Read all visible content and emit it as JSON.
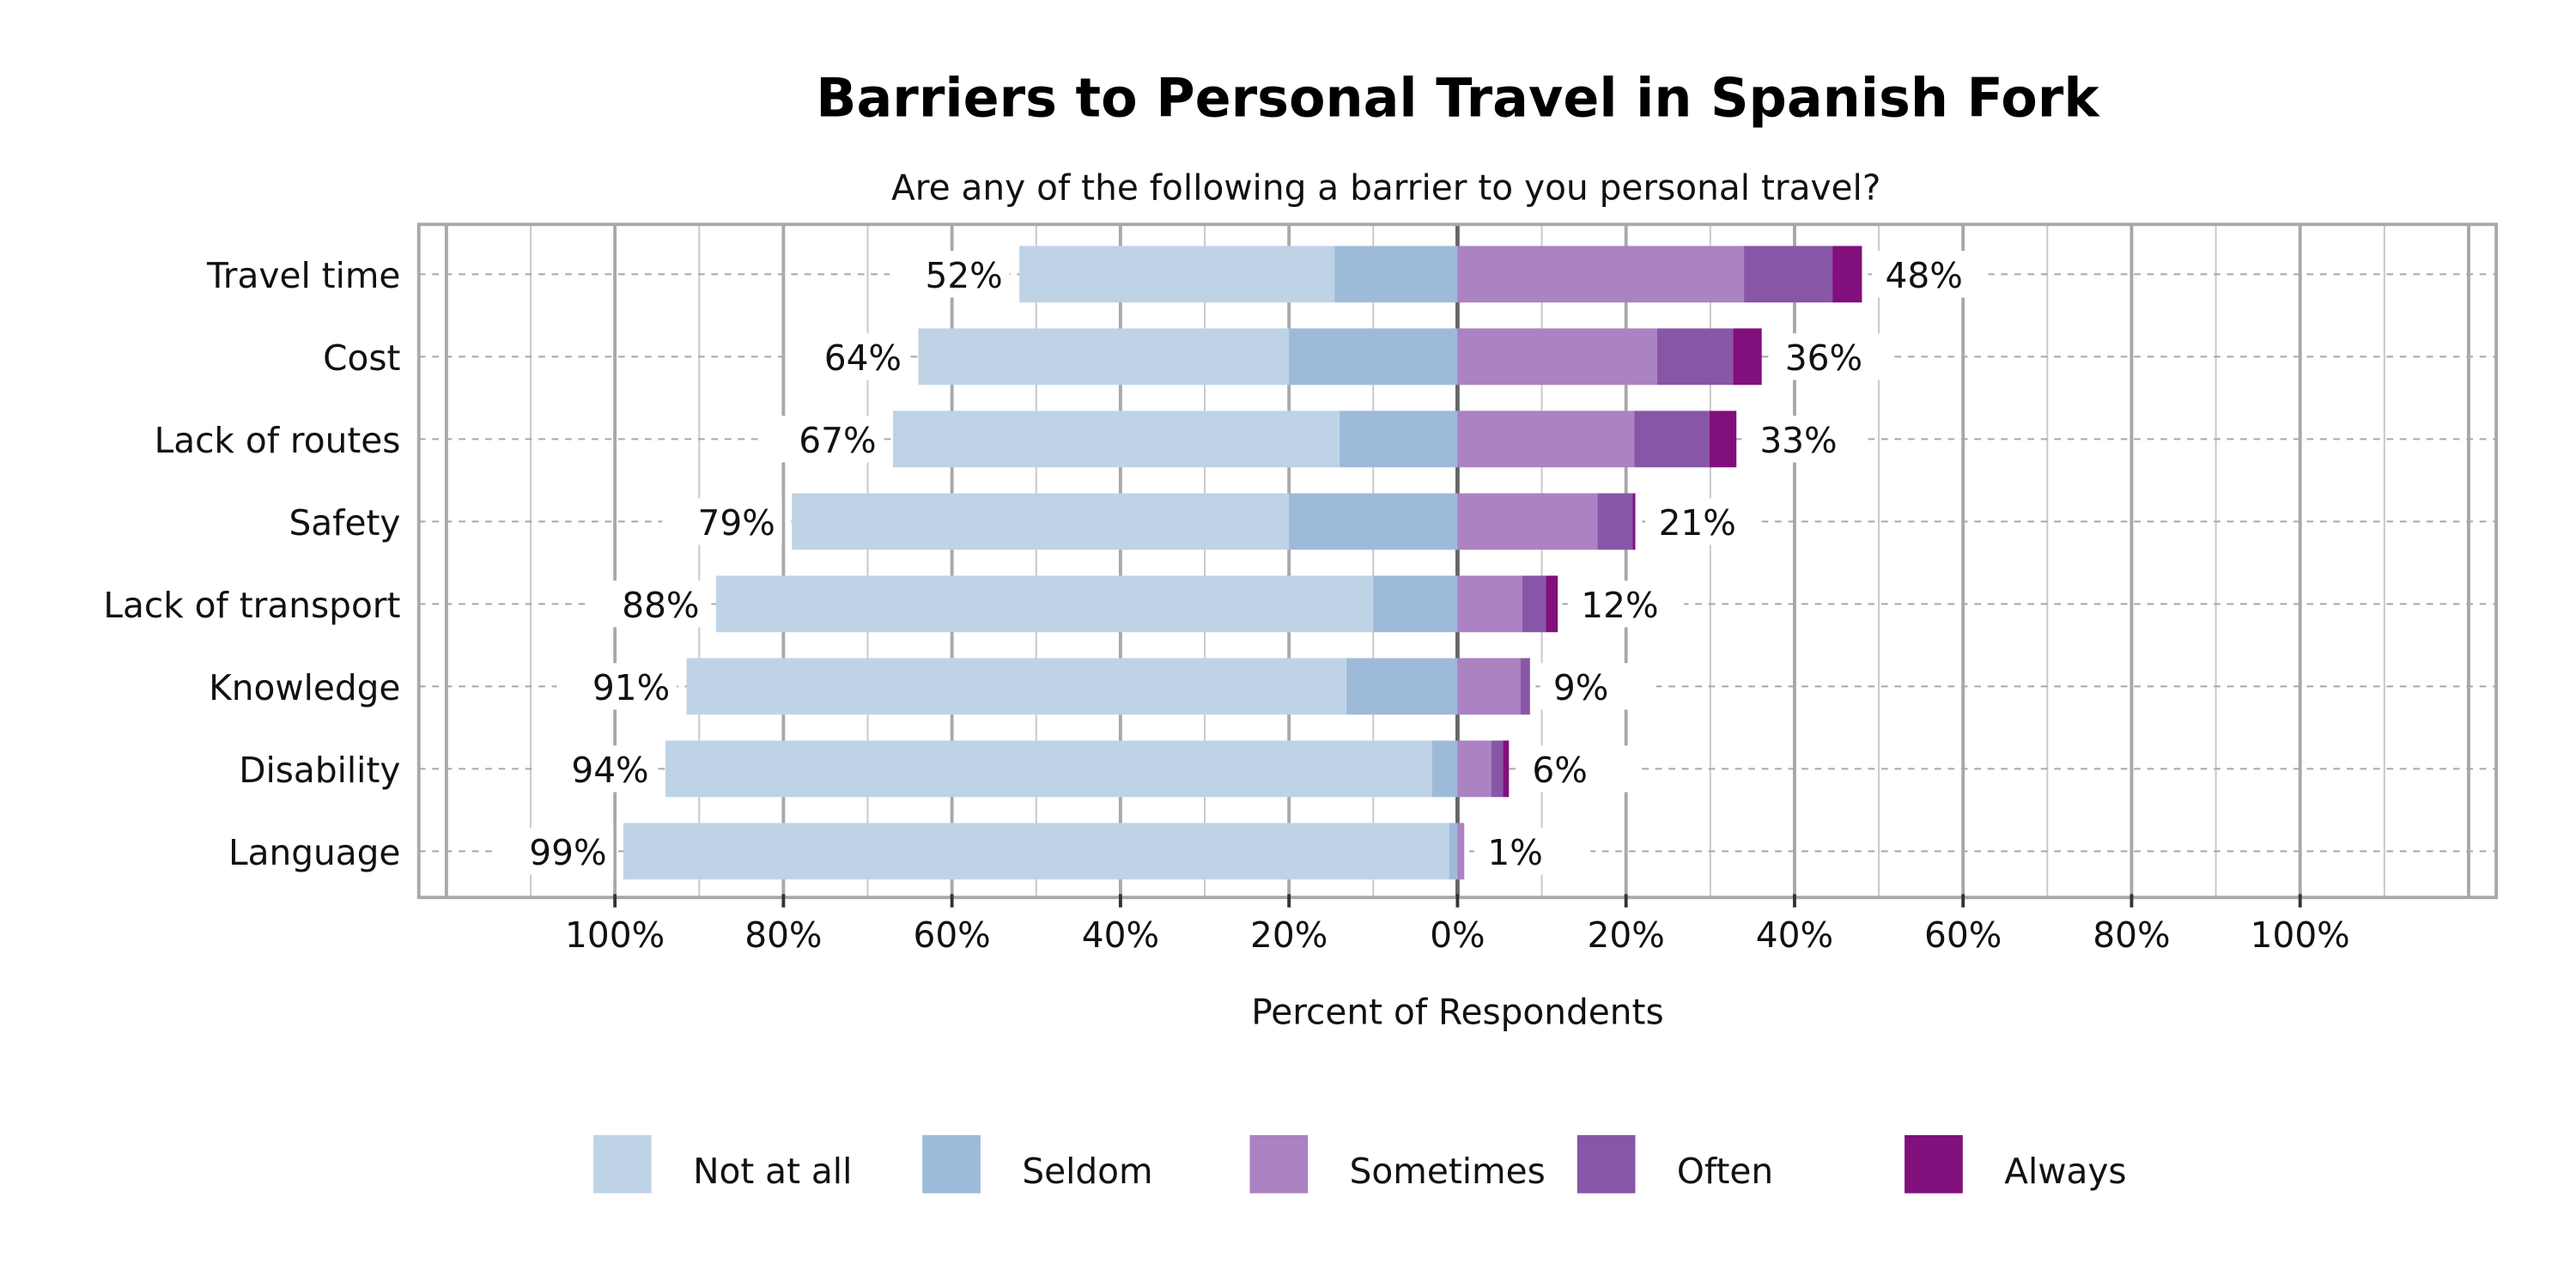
{
  "chart_data": {
    "type": "bar",
    "orientation": "horizontal-diverging-stacked",
    "title": "Barriers to Personal Travel in Spanish Fork",
    "subtitle": "Are any of the following a barrier to you personal travel?",
    "xlabel": "Percent of Respondents",
    "ylabel": "",
    "xlim": [
      -123,
      123
    ],
    "x_tick_values": [
      -100,
      -80,
      -60,
      -40,
      -20,
      0,
      20,
      40,
      60,
      80,
      100
    ],
    "x_tick_labels": [
      "100%",
      "80%",
      "60%",
      "40%",
      "20%",
      "0%",
      "20%",
      "40%",
      "60%",
      "80%",
      "100%"
    ],
    "grid": true,
    "legend_position": "bottom",
    "categories": [
      "Travel time",
      "Cost",
      "Lack of routes",
      "Safety",
      "Lack of transport",
      "Knowledge",
      "Disability",
      "Language"
    ],
    "series": [
      {
        "name": "Not at all",
        "side": "left",
        "color": "#bfd3e6",
        "values": [
          37.4,
          44.0,
          53.0,
          59.0,
          78.0,
          78.3,
          91.0,
          98.0
        ]
      },
      {
        "name": "Seldom",
        "side": "left",
        "color": "#9ebad9",
        "values": [
          14.6,
          20.0,
          14.0,
          20.0,
          10.0,
          13.2,
          3.0,
          1.0
        ]
      },
      {
        "name": "Sometimes",
        "side": "right",
        "color": "#ab82c2",
        "values": [
          34.0,
          23.7,
          21.0,
          16.6,
          7.7,
          7.5,
          4.0,
          0.8
        ]
      },
      {
        "name": "Often",
        "side": "right",
        "color": "#8856a7",
        "values": [
          10.5,
          9.0,
          8.9,
          4.2,
          2.8,
          1.1,
          1.4,
          0.0
        ]
      },
      {
        "name": "Always",
        "side": "right",
        "color": "#810f7c",
        "values": [
          3.5,
          3.4,
          3.2,
          0.3,
          1.4,
          0.0,
          0.7,
          0.0
        ]
      }
    ],
    "left_totals": [
      "52%",
      "64%",
      "67%",
      "79%",
      "88%",
      "91%",
      "94%",
      "99%"
    ],
    "right_totals": [
      "48%",
      "36%",
      "33%",
      "21%",
      "12%",
      "9%",
      "6%",
      "1%"
    ]
  }
}
